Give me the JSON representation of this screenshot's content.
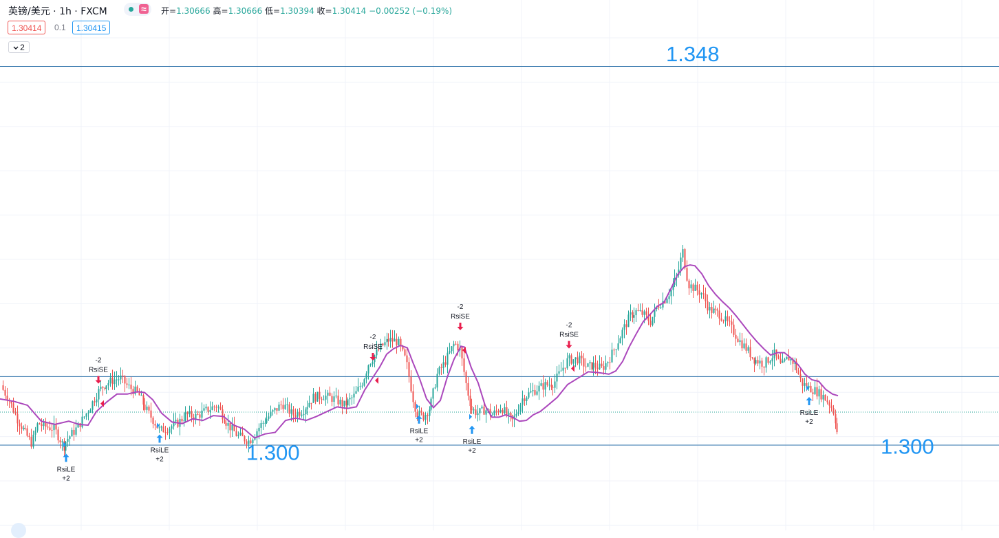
{
  "header": {
    "symbol": "英镑/美元 · 1h · FXCM",
    "open_label": "开=",
    "open": "1.30666",
    "high_label": "高=",
    "high": "1.30666",
    "low_label": "低=",
    "low": "1.30394",
    "close_label": "收=",
    "close": "1.30414",
    "change": "−0.00252 (−0.19%)",
    "bid": "1.30414",
    "spread": "0.1",
    "ask": "1.30415",
    "collapse_count": "2",
    "wave_icon": "≈"
  },
  "colors": {
    "up": "#26a69a",
    "down": "#ef5350",
    "ma": "#ab47bc",
    "hline": "#2a6fa8",
    "buy": "#2196f3",
    "sell": "#e91e4d",
    "annot": "#2196f3"
  },
  "chart_data": {
    "type": "candlestick",
    "title": "",
    "ylim": [
      1.2956,
      1.3491
    ],
    "series": [
      {
        "name": "price",
        "x": [
          0,
          12,
          25,
          38,
          46,
          55,
          62,
          78,
          92,
          96,
          112,
          128,
          142,
          150,
          165,
          175,
          185,
          200,
          210,
          225,
          232,
          245,
          258,
          270,
          285,
          300,
          315,
          330,
          345,
          362,
          378,
          395,
          410,
          425,
          440,
          455,
          470,
          485,
          500,
          515,
          527,
          535,
          545,
          555,
          565,
          578,
          590,
          600,
          605,
          615,
          625,
          635,
          645,
          660,
          668,
          678,
          685,
          695,
          705,
          715,
          728,
          738,
          745,
          760,
          775,
          790,
          805,
          815,
          825,
          840,
          852,
          862,
          875,
          885,
          895,
          905,
          915,
          925,
          935,
          945,
          955,
          965,
          975,
          985,
          992,
          1000,
          1010,
          1020,
          1030,
          1045,
          1060,
          1075,
          1085,
          1095,
          1110,
          1125,
          1135,
          1145,
          1155,
          1165,
          1175,
          1185,
          1195,
          1205,
          1212,
          1218
        ],
        "y": [
          1.3075,
          1.3058,
          1.3032,
          1.3013,
          1.3002,
          1.3028,
          1.3024,
          1.3021,
          1.2998,
          1.3006,
          1.3022,
          1.3044,
          1.3067,
          1.3075,
          1.3082,
          1.3084,
          1.3074,
          1.3065,
          1.3048,
          1.3028,
          1.3018,
          1.3022,
          1.3028,
          1.3038,
          1.3036,
          1.3044,
          1.305,
          1.3027,
          1.3012,
          1.3005,
          1.3025,
          1.304,
          1.3052,
          1.3038,
          1.3044,
          1.306,
          1.3062,
          1.3058,
          1.305,
          1.3062,
          1.308,
          1.3102,
          1.3114,
          1.3125,
          1.3132,
          1.313,
          1.3105,
          1.3058,
          1.304,
          1.3036,
          1.3048,
          1.3088,
          1.3102,
          1.3128,
          1.312,
          1.307,
          1.3045,
          1.304,
          1.3045,
          1.3038,
          1.3048,
          1.3035,
          1.303,
          1.306,
          1.3068,
          1.3075,
          1.3078,
          1.3093,
          1.3107,
          1.3108,
          1.3098,
          1.31,
          1.3096,
          1.3108,
          1.3125,
          1.3145,
          1.3162,
          1.3168,
          1.3164,
          1.3155,
          1.3175,
          1.3182,
          1.3195,
          1.3215,
          1.3244,
          1.3202,
          1.3196,
          1.319,
          1.317,
          1.3165,
          1.315,
          1.313,
          1.312,
          1.3108,
          1.3102,
          1.3114,
          1.3098,
          1.311,
          1.3102,
          1.3078,
          1.3072,
          1.3068,
          1.3062,
          1.3052,
          1.304,
          1.3008
        ]
      },
      {
        "name": "ma",
        "x": [
          0,
          20,
          40,
          60,
          80,
          100,
          115,
          128,
          140,
          155,
          170,
          185,
          200,
          210,
          222,
          235,
          250,
          265,
          280,
          295,
          310,
          325,
          340,
          355,
          370,
          385,
          400,
          415,
          430,
          445,
          460,
          475,
          490,
          505,
          518,
          530,
          542,
          552,
          562,
          572,
          582,
          592,
          600,
          610,
          620,
          630,
          640,
          650,
          660,
          670,
          675,
          685,
          695,
          705,
          715,
          725,
          735,
          745,
          755,
          765,
          775,
          785,
          795,
          810,
          825,
          840,
          855,
          870,
          885,
          895,
          905,
          915,
          925,
          935,
          945,
          955,
          965,
          975,
          985,
          995,
          1003,
          1010,
          1020,
          1030,
          1040,
          1050,
          1060,
          1070,
          1080,
          1090,
          1100,
          1110,
          1120,
          1130,
          1140,
          1150,
          1160,
          1170,
          1180,
          1190,
          1200,
          1210,
          1218
        ],
        "y": [
          1.3058,
          1.3055,
          1.305,
          1.303,
          1.3026,
          1.303,
          1.3026,
          1.3025,
          1.3042,
          1.3054,
          1.3064,
          1.3064,
          1.3067,
          1.3066,
          1.3057,
          1.304,
          1.3029,
          1.3027,
          1.3033,
          1.3031,
          1.3037,
          1.3036,
          1.3025,
          1.302,
          1.3009,
          1.3014,
          1.3016,
          1.3031,
          1.3034,
          1.3031,
          1.3036,
          1.3042,
          1.3048,
          1.3046,
          1.3048,
          1.3069,
          1.3085,
          1.3098,
          1.3114,
          1.3121,
          1.3125,
          1.3122,
          1.3104,
          1.3083,
          1.3058,
          1.3047,
          1.3056,
          1.3085,
          1.3108,
          1.3124,
          1.3123,
          1.3097,
          1.3078,
          1.305,
          1.3035,
          1.3035,
          1.3038,
          1.3035,
          1.303,
          1.3031,
          1.3038,
          1.3042,
          1.3049,
          1.306,
          1.3076,
          1.3084,
          1.3092,
          1.3091,
          1.3089,
          1.3093,
          1.3105,
          1.3124,
          1.314,
          1.3155,
          1.3164,
          1.3174,
          1.3179,
          1.3196,
          1.3214,
          1.3224,
          1.3226,
          1.3225,
          1.3215,
          1.32,
          1.3189,
          1.318,
          1.3172,
          1.3162,
          1.3151,
          1.314,
          1.313,
          1.3121,
          1.3113,
          1.3116,
          1.3116,
          1.3109,
          1.3101,
          1.3089,
          1.3082,
          1.308,
          1.307,
          1.3064,
          1.3062
        ]
      }
    ],
    "hlines": [
      1.3475,
      1.3086,
      1.3
    ],
    "dotted_line": 1.30414,
    "annotations": [
      {
        "text": "1.348",
        "x": 968,
        "y": 1.349
      },
      {
        "text": "1.300",
        "x": 358,
        "y": 1.299
      },
      {
        "text": "1.300",
        "x": 1280,
        "y": 1.2998
      }
    ],
    "signals": [
      {
        "type": "sell",
        "label": "RsiSE",
        "qty": "-2",
        "x": 143,
        "y": 1.3078
      },
      {
        "type": "sell",
        "label": "RsiSE",
        "qty": "-2",
        "x": 542,
        "y": 1.3107
      },
      {
        "type": "sell",
        "label": "RsiSE",
        "qty": "-2",
        "x": 669,
        "y": 1.3145
      },
      {
        "type": "sell",
        "label": "RsiSE",
        "qty": "-2",
        "x": 827,
        "y": 1.3122
      },
      {
        "type": "buy",
        "label": "RsiLE",
        "qty": "+2",
        "x": 96,
        "y": 1.2998
      },
      {
        "type": "buy",
        "label": "RsiLE",
        "qty": "+2",
        "x": 232,
        "y": 1.3022
      },
      {
        "type": "buy",
        "label": "RsiLE",
        "qty": "+2",
        "x": 609,
        "y": 1.3046
      },
      {
        "type": "buy",
        "label": "RsiLE",
        "qty": "+2",
        "x": 686,
        "y": 1.3033
      },
      {
        "type": "buy",
        "label": "RsiLE",
        "qty": "+2",
        "x": 1176,
        "y": 1.3069
      }
    ]
  }
}
